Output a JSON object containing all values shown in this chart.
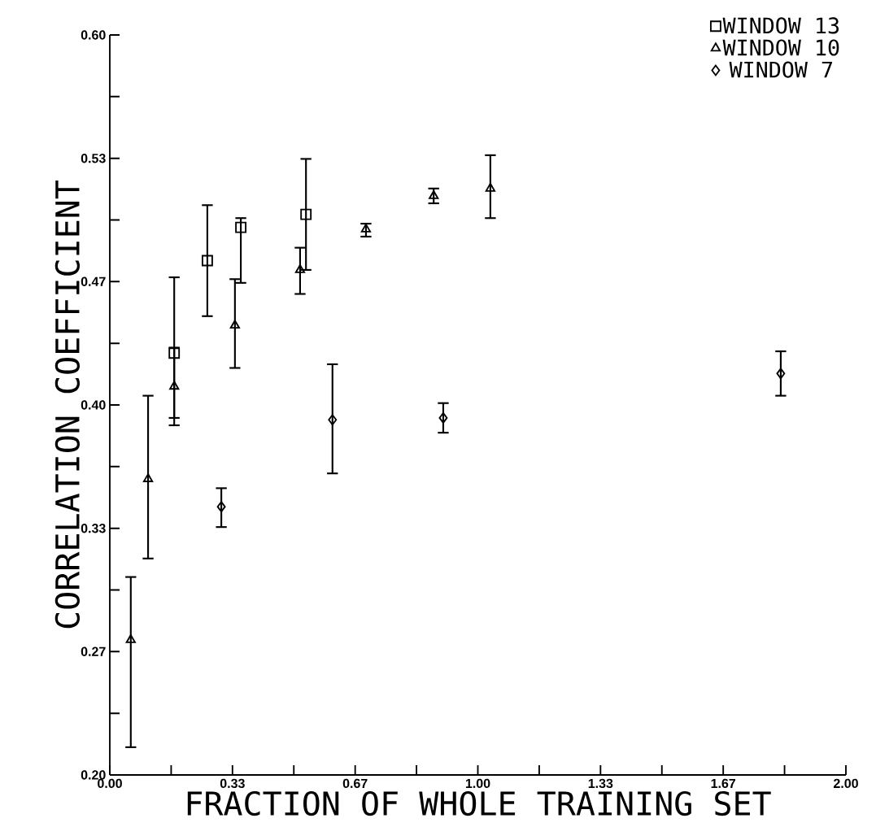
{
  "chart_data": {
    "type": "scatter",
    "xlabel": "FRACTION OF WHOLE TRAINING SET",
    "ylabel": "CORRELATION COEFFICIENT",
    "xlim": [
      0,
      2
    ],
    "ylim": [
      0.2,
      0.6
    ],
    "xticks": [
      {
        "value": 0,
        "label": "0.00"
      },
      {
        "value": 0.1667,
        "label": null
      },
      {
        "value": 0.3333,
        "label": "0.33"
      },
      {
        "value": 0.5,
        "label": null
      },
      {
        "value": 0.6667,
        "label": "0.67"
      },
      {
        "value": 0.8333,
        "label": null
      },
      {
        "value": 1,
        "label": "1.00"
      },
      {
        "value": 1.1667,
        "label": null
      },
      {
        "value": 1.3333,
        "label": "1.33"
      },
      {
        "value": 1.5,
        "label": null
      },
      {
        "value": 1.6667,
        "label": "1.67"
      },
      {
        "value": 1.8333,
        "label": null
      },
      {
        "value": 2,
        "label": "2.00"
      }
    ],
    "yticks": [
      {
        "value": 0.2,
        "label": "0.20"
      },
      {
        "value": 0.2333,
        "label": null
      },
      {
        "value": 0.2667,
        "label": "0.27"
      },
      {
        "value": 0.3,
        "label": null
      },
      {
        "value": 0.3333,
        "label": "0.33"
      },
      {
        "value": 0.3667,
        "label": null
      },
      {
        "value": 0.4,
        "label": "0.40"
      },
      {
        "value": 0.4333,
        "label": null
      },
      {
        "value": 0.4667,
        "label": "0.47"
      },
      {
        "value": 0.5,
        "label": null
      },
      {
        "value": 0.5333,
        "label": "0.53"
      },
      {
        "value": 0.5667,
        "label": null
      },
      {
        "value": 0.6,
        "label": "0.60"
      }
    ],
    "legend": "top right",
    "grid": false,
    "series": [
      {
        "name": "WINDOW 13",
        "color": "#000000",
        "marker": "square",
        "x": [
          0.175,
          0.265,
          0.356,
          0.533
        ],
        "values": [
          0.428,
          0.478,
          0.496,
          0.503
        ],
        "errors": [
          [
            0.393,
            0.469
          ],
          [
            0.448,
            0.508
          ],
          [
            0.466,
            0.501
          ],
          [
            0.473,
            0.533
          ]
        ]
      },
      {
        "name": "WINDOW 10",
        "color": "#000000",
        "marker": "triangle",
        "x": [
          0.057,
          0.104,
          0.175,
          0.34,
          0.517,
          0.696,
          0.88,
          1.034
        ],
        "values": [
          0.273,
          0.36,
          0.41,
          0.443,
          0.473,
          0.495,
          0.513,
          0.517
        ],
        "errors": [
          [
            0.215,
            0.307
          ],
          [
            0.317,
            0.405
          ],
          [
            0.389,
            0.431
          ],
          [
            0.42,
            0.468
          ],
          [
            0.46,
            0.485
          ],
          [
            0.491,
            0.498
          ],
          [
            0.509,
            0.517
          ],
          [
            0.501,
            0.535
          ]
        ]
      },
      {
        "name": "WINDOW  7",
        "color": "#000000",
        "marker": "diamond",
        "x": [
          0.303,
          0.605,
          0.906,
          1.823
        ],
        "values": [
          0.345,
          0.392,
          0.393,
          0.417
        ],
        "errors": [
          [
            0.334,
            0.355
          ],
          [
            0.363,
            0.422
          ],
          [
            0.385,
            0.401
          ],
          [
            0.405,
            0.429
          ]
        ]
      }
    ]
  }
}
